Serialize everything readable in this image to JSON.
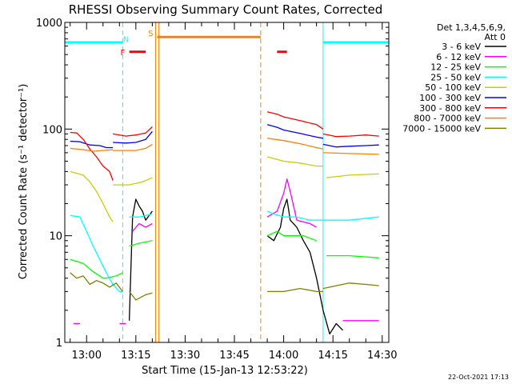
{
  "chart_data": {
    "type": "line",
    "title": "RHESSI Observing Summary Count Rates, Corrected",
    "xlabel": "Start Time (15-Jan-13 12:53:22)",
    "ylabel": "Corrected Count Rate (s⁻¹ detector⁻¹)",
    "y_scale": "log",
    "ylim": [
      1,
      1000
    ],
    "xlim": [
      "12:53:22",
      "14:32"
    ],
    "x_ticks": [
      "13:00",
      "13:15",
      "13:30",
      "13:45",
      "14:00",
      "14:15",
      "14:30"
    ],
    "y_ticks": [
      "1",
      "10",
      "100",
      "1000"
    ],
    "legend_header": [
      "Det 1,3,4,5,6,9,",
      "Att 0"
    ],
    "legend_position": "right",
    "footer": "22-Oct-2021 17:13",
    "series": [
      {
        "name": "3 - 6 keV",
        "color": "#000000",
        "segments": [
          [
            [
              "13:13",
              1.6
            ],
            [
              "13:14",
              15
            ],
            [
              "13:15",
              22
            ],
            [
              "13:16",
              19
            ],
            [
              "13:17",
              17
            ],
            [
              "13:18",
              14
            ],
            [
              "13:20",
              17
            ]
          ],
          [
            [
              "13:55",
              10
            ],
            [
              "13:57",
              9
            ],
            [
              "13:59",
              12
            ],
            [
              "14:00",
              18
            ],
            [
              "14:01",
              22
            ],
            [
              "14:02",
              14
            ],
            [
              "14:04",
              12
            ],
            [
              "14:06",
              9
            ],
            [
              "14:08",
              7
            ],
            [
              "14:10",
              4
            ],
            [
              "14:12",
              2
            ],
            [
              "14:14",
              1.2
            ],
            [
              "14:16",
              1.5
            ],
            [
              "14:18",
              1.3
            ]
          ]
        ]
      },
      {
        "name": "6 - 12 keV",
        "color": "#ff00ff",
        "segments": [
          [
            [
              "12:56",
              1.5
            ],
            [
              "12:58",
              1.5
            ]
          ],
          [
            [
              "13:11",
              1.5
            ]
          ],
          [
            [
              "13:14",
              11
            ],
            [
              "13:16",
              13
            ],
            [
              "13:18",
              12
            ],
            [
              "13:20",
              13
            ]
          ],
          [
            [
              "13:55",
              15
            ],
            [
              "13:58",
              17
            ],
            [
              "14:00",
              25
            ],
            [
              "14:01",
              34
            ],
            [
              "14:02",
              26
            ],
            [
              "14:04",
              14
            ],
            [
              "14:08",
              13
            ],
            [
              "14:10",
              12
            ]
          ],
          [
            [
              "14:18",
              1.6
            ],
            [
              "14:25",
              1.6
            ],
            [
              "14:29",
              1.6
            ]
          ]
        ]
      },
      {
        "name": "12 - 25 keV",
        "color": "#00ff00",
        "segments": [
          [
            [
              "12:55",
              6.0
            ],
            [
              "12:59",
              5.5
            ],
            [
              "13:02",
              4.6
            ],
            [
              "13:05",
              4.0
            ],
            [
              "13:06",
              4.0
            ],
            [
              "13:09",
              4.2
            ],
            [
              "13:11",
              4.5
            ]
          ],
          [
            [
              "13:13",
              8.0
            ],
            [
              "13:16",
              8.5
            ],
            [
              "13:20",
              9.0
            ]
          ],
          [
            [
              "13:55",
              10
            ],
            [
              "13:58",
              11
            ],
            [
              "14:00",
              10
            ],
            [
              "14:03",
              10
            ],
            [
              "14:06",
              10
            ],
            [
              "14:10",
              9
            ]
          ],
          [
            [
              "14:13",
              6.5
            ],
            [
              "14:20",
              6.5
            ],
            [
              "14:29",
              6.2
            ]
          ]
        ]
      },
      {
        "name": "25 - 50 keV",
        "color": "#00ffff",
        "segments": [
          [
            [
              "12:55",
              15.5
            ],
            [
              "12:58",
              15
            ],
            [
              "13:00",
              11
            ],
            [
              "13:02",
              8
            ],
            [
              "13:04",
              6
            ],
            [
              "13:06",
              4.5
            ],
            [
              "13:08",
              3.5
            ],
            [
              "13:10",
              3
            ],
            [
              "13:11",
              3
            ]
          ],
          [
            [
              "13:13",
              15
            ],
            [
              "13:16",
              15
            ],
            [
              "13:20",
              16
            ]
          ],
          [
            [
              "13:55",
              17
            ],
            [
              "13:57",
              16
            ],
            [
              "14:00",
              15
            ],
            [
              "14:04",
              15
            ],
            [
              "14:08",
              14
            ],
            [
              "14:10",
              14
            ],
            [
              "14:12",
              14
            ],
            [
              "14:15",
              14
            ],
            [
              "14:20",
              14
            ],
            [
              "14:29",
              15
            ]
          ]
        ]
      },
      {
        "name": "50 - 100 keV",
        "color": "#cccc00",
        "segments": [
          [
            [
              "12:55",
              40
            ],
            [
              "12:59",
              37
            ],
            [
              "13:01",
              32
            ],
            [
              "13:03",
              26
            ],
            [
              "13:05",
              20
            ],
            [
              "13:07",
              15
            ],
            [
              "13:08",
              13.5
            ]
          ],
          [
            [
              "13:08",
              30
            ],
            [
              "13:10",
              30
            ],
            [
              "13:13",
              30
            ],
            [
              "13:17",
              32
            ],
            [
              "13:20",
              35
            ]
          ],
          [
            [
              "13:55",
              55
            ],
            [
              "14:00",
              50
            ],
            [
              "14:05",
              48
            ],
            [
              "14:10",
              45
            ],
            [
              "14:12",
              45
            ]
          ],
          [
            [
              "14:13",
              35
            ],
            [
              "14:20",
              37
            ],
            [
              "14:29",
              38
            ]
          ]
        ]
      },
      {
        "name": "100 - 300 keV",
        "color": "#0000ff",
        "segments": [
          [
            [
              "12:55",
              77
            ],
            [
              "12:58",
              76
            ],
            [
              "13:01",
              71
            ],
            [
              "13:04",
              70
            ],
            [
              "13:06",
              67
            ],
            [
              "13:08",
              67
            ]
          ],
          [
            [
              "13:08",
              75
            ],
            [
              "13:12",
              74
            ],
            [
              "13:15",
              75
            ],
            [
              "13:18",
              80
            ],
            [
              "13:20",
              95
            ]
          ],
          [
            [
              "13:55",
              110
            ],
            [
              "13:58",
              104
            ],
            [
              "14:00",
              98
            ],
            [
              "14:05",
              91
            ],
            [
              "14:10",
              84
            ],
            [
              "14:12",
              82
            ]
          ],
          [
            [
              "14:12",
              72
            ],
            [
              "14:16",
              68
            ],
            [
              "14:20",
              69
            ],
            [
              "14:25",
              70
            ],
            [
              "14:29",
              71
            ]
          ]
        ]
      },
      {
        "name": "300 - 800 keV",
        "color": "#ff0000",
        "segments": [
          [
            [
              "12:55",
              93
            ],
            [
              "12:57",
              92
            ],
            [
              "12:59",
              80
            ],
            [
              "13:01",
              65
            ],
            [
              "13:03",
              55
            ],
            [
              "13:05",
              45
            ],
            [
              "13:07",
              40
            ],
            [
              "13:08",
              33
            ]
          ],
          [
            [
              "13:08",
              90
            ],
            [
              "13:12",
              86
            ],
            [
              "13:15",
              88
            ],
            [
              "13:18",
              92
            ],
            [
              "13:20",
              105
            ]
          ],
          [
            [
              "13:55",
              145
            ],
            [
              "13:58",
              138
            ],
            [
              "14:00",
              130
            ],
            [
              "14:05",
              120
            ],
            [
              "14:10",
              110
            ],
            [
              "14:12",
              100
            ]
          ],
          [
            [
              "14:12",
              90
            ],
            [
              "14:16",
              85
            ],
            [
              "14:20",
              86
            ],
            [
              "14:25",
              88
            ],
            [
              "14:29",
              86
            ]
          ]
        ]
      },
      {
        "name": "800 - 7000 keV",
        "color": "#ff8000",
        "segments": [
          [
            [
              "12:55",
              66
            ],
            [
              "12:59",
              64
            ],
            [
              "13:02",
              62
            ],
            [
              "13:05",
              63
            ],
            [
              "13:08",
              64
            ]
          ],
          [
            [
              "13:08",
              63
            ],
            [
              "13:12",
              63
            ],
            [
              "13:15",
              63
            ],
            [
              "13:18",
              66
            ],
            [
              "13:20",
              72
            ]
          ],
          [
            [
              "13:55",
              82
            ],
            [
              "14:00",
              78
            ],
            [
              "14:05",
              73
            ],
            [
              "14:10",
              67
            ],
            [
              "14:12",
              65
            ]
          ],
          [
            [
              "14:12",
              60
            ],
            [
              "14:20",
              59
            ],
            [
              "14:29",
              58
            ]
          ]
        ]
      },
      {
        "name": "7000 - 15000 keV",
        "color": "#808000",
        "segments": [
          [
            [
              "12:55",
              4.5
            ],
            [
              "12:57",
              4.0
            ],
            [
              "12:59",
              4.2
            ],
            [
              "13:01",
              3.5
            ],
            [
              "13:03",
              3.8
            ],
            [
              "13:05",
              3.6
            ],
            [
              "13:07",
              3.3
            ],
            [
              "13:09",
              3.6
            ],
            [
              "13:11",
              3.0
            ]
          ],
          [
            [
              "13:13",
              3.0
            ],
            [
              "13:15",
              2.5
            ],
            [
              "13:18",
              2.8
            ],
            [
              "13:20",
              2.9
            ]
          ],
          [
            [
              "13:55",
              3.0
            ],
            [
              "14:00",
              3.0
            ],
            [
              "14:05",
              3.2
            ],
            [
              "14:10",
              3.0
            ],
            [
              "14:12",
              3.0
            ]
          ],
          [
            [
              "14:12",
              3.2
            ],
            [
              "14:16",
              3.4
            ],
            [
              "14:20",
              3.6
            ],
            [
              "14:25",
              3.5
            ],
            [
              "14:29",
              3.4
            ]
          ]
        ]
      }
    ],
    "flag_bars": [
      {
        "label": "",
        "color": "#00ffff",
        "start": "12:53:22",
        "end": "13:11",
        "value": 650
      },
      {
        "label": "",
        "color": "#00ffff",
        "start": "14:12",
        "end": "14:32",
        "value": 650
      },
      {
        "label": "",
        "color": "#ff8000",
        "start": "13:21:30",
        "end": "13:53",
        "value": 730
      },
      {
        "label": "",
        "color": "#ff0000",
        "start": "13:13",
        "end": "13:18",
        "value": 530
      },
      {
        "label": "",
        "color": "#ff0000",
        "start": "13:58",
        "end": "14:01",
        "value": 530
      }
    ],
    "flag_labels": [
      {
        "text": "F",
        "color": "#ff0000",
        "at": "13:11",
        "value": 530
      },
      {
        "text": "N",
        "color": "#00ffff",
        "at": "13:12",
        "value": 700
      },
      {
        "text": "S",
        "color": "#ff8000",
        "at": "13:19:30",
        "value": 800
      }
    ],
    "vertical_markers": [
      {
        "at": "13:11",
        "color": "#00ffff",
        "style": "dashed"
      },
      {
        "at": "13:21",
        "color": "#ff8000",
        "style": "solid"
      },
      {
        "at": "13:22",
        "color": "#ff8000",
        "style": "solid"
      },
      {
        "at": "13:53",
        "color": "#ff8000",
        "style": "dashed"
      },
      {
        "at": "14:12",
        "color": "#00ffff",
        "style": "solid"
      },
      {
        "at": "14:32",
        "color": "#00ffff",
        "style": "dashed"
      }
    ]
  }
}
